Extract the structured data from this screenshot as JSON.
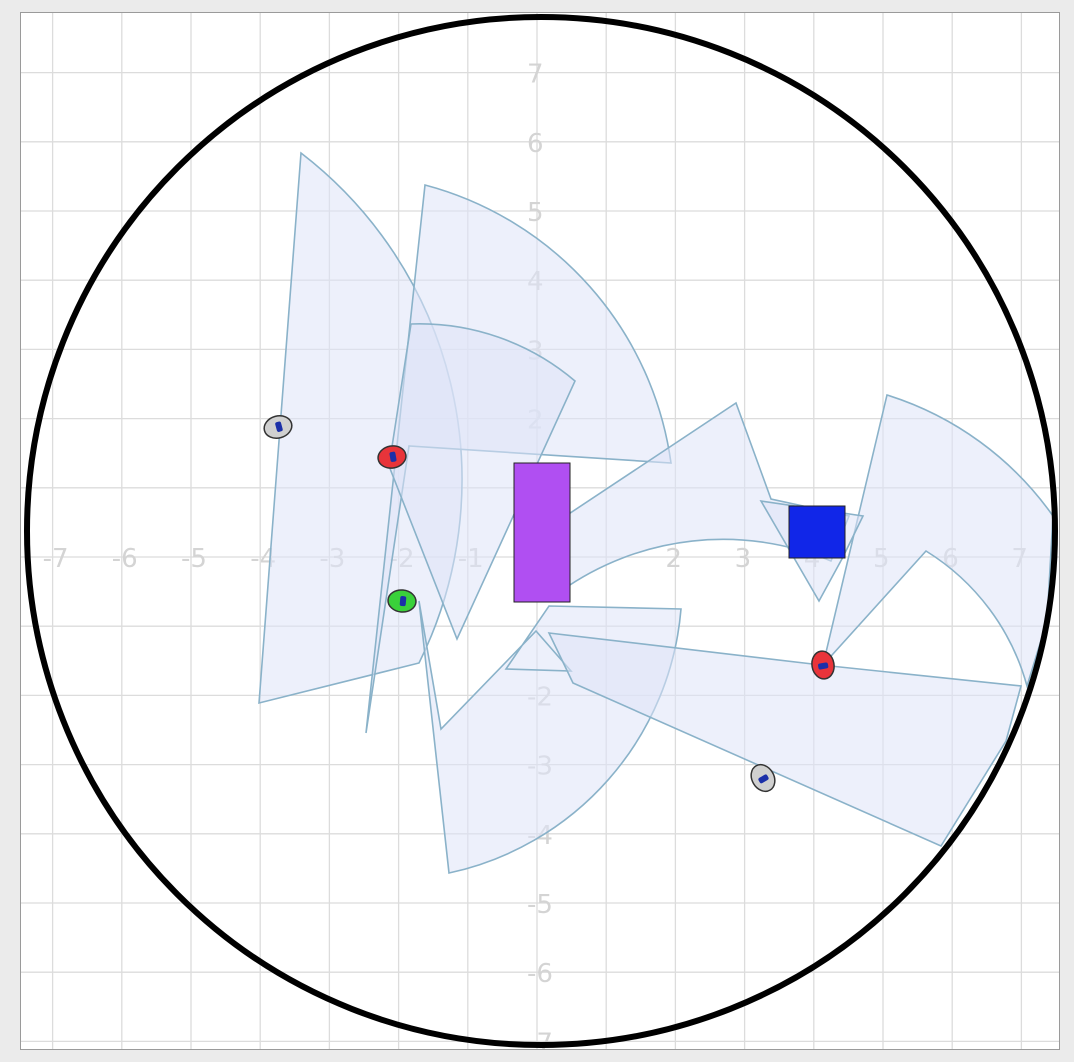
{
  "scene": {
    "x_tick_labels": [
      "-7",
      "-6",
      "-5",
      "-4",
      "-3",
      "-2",
      "-1",
      "2",
      "3",
      "4",
      "5",
      "6",
      "7"
    ],
    "y_tick_labels": [
      "7",
      "6",
      "5",
      "4",
      "3",
      "2",
      "-2",
      "-3",
      "-4",
      "-5",
      "-6",
      "-7"
    ],
    "colors": {
      "background": "#ffffff",
      "grid": "#dcdcdc",
      "tick_label": "#d4d4d4",
      "arena_boundary": "#000000",
      "sensor_fov_fill": "#dfe3f7",
      "sensor_fov_stroke": "#8ab2c9",
      "obstacle_magenta": "#b04ff2",
      "obstacle_blue": "#1126e8",
      "robot_red": "#e8343a",
      "robot_green": "#3ad13a",
      "robot_gray": "#d0d0d0"
    },
    "obstacles": [
      {
        "name": "obstacle-magenta-rect",
        "color": "#b04ff2"
      },
      {
        "name": "obstacle-blue-square",
        "color": "#1126e8"
      }
    ],
    "robots": [
      {
        "name": "robot-red-left",
        "color": "#e8343a"
      },
      {
        "name": "robot-green",
        "color": "#3ad13a"
      },
      {
        "name": "robot-red-right",
        "color": "#e8343a"
      },
      {
        "name": "robot-gray-left",
        "color": "#d0d0d0"
      },
      {
        "name": "robot-gray-bottom",
        "color": "#d0d0d0"
      }
    ]
  }
}
